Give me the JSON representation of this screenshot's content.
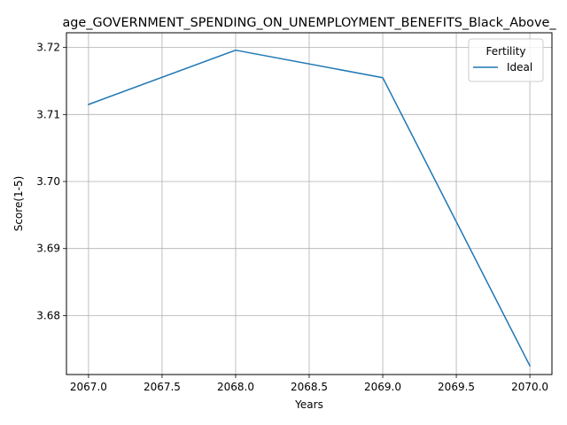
{
  "chart_data": {
    "type": "line",
    "title": "age_GOVERNMENT_SPENDING_ON_UNEMPLOYMENT_BENEFITS_Black_Above_",
    "xlabel": "Years",
    "ylabel": "Score(1-5)",
    "xlim": [
      2066.85,
      2070.15
    ],
    "ylim": [
      3.6712,
      3.7222
    ],
    "xticks": [
      2067.0,
      2067.5,
      2068.0,
      2068.5,
      2069.0,
      2069.5,
      2070.0
    ],
    "xtick_labels": [
      "2067.0",
      "2067.5",
      "2068.0",
      "2068.5",
      "2069.0",
      "2069.5",
      "2070.0"
    ],
    "yticks": [
      3.68,
      3.69,
      3.7,
      3.71,
      3.72
    ],
    "ytick_labels": [
      "3.68",
      "3.69",
      "3.70",
      "3.71",
      "3.72"
    ],
    "grid": true,
    "legend": {
      "title": "Fertility",
      "placement": "top-right"
    },
    "series": [
      {
        "name": "Ideal",
        "color": "#1f77b4",
        "x": [
          2067,
          2068,
          2069,
          2070
        ],
        "y": [
          3.7115,
          3.7196,
          3.7155,
          3.6725
        ]
      }
    ]
  }
}
